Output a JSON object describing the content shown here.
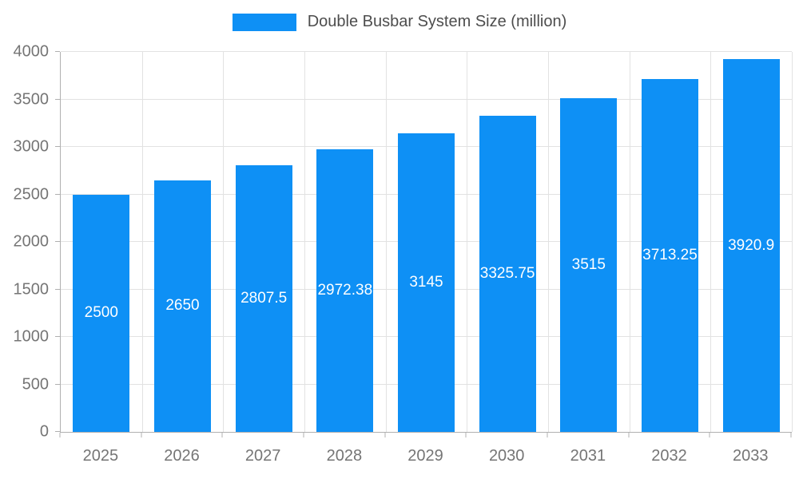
{
  "chart_data": {
    "type": "bar",
    "title": "Double Busbar System Size (million)",
    "categories": [
      "2025",
      "2026",
      "2027",
      "2028",
      "2029",
      "2030",
      "2031",
      "2032",
      "2033"
    ],
    "values": [
      2500,
      2650,
      2807.5,
      2972.38,
      3145,
      3325.75,
      3515,
      3713.25,
      3920.9
    ],
    "labels": [
      "2500",
      "2650",
      "2807.5",
      "2972.38",
      "3145",
      "3325.75",
      "3515",
      "3713.25",
      "3920.9"
    ],
    "xlabel": "",
    "ylabel": "",
    "ylim": [
      0,
      4000
    ],
    "y_ticks": [
      0,
      500,
      1000,
      1500,
      2000,
      2500,
      3000,
      3500,
      4000
    ],
    "grid": "both",
    "legend_position": "top",
    "colors": {
      "bar": "#0e90f5",
      "bar_label": "#ffffff",
      "axis_text": "#757575",
      "grid": "#e2e2e2",
      "axis_line": "#b0b0b0",
      "title": "#4d4d4d",
      "background": "#ffffff"
    }
  }
}
